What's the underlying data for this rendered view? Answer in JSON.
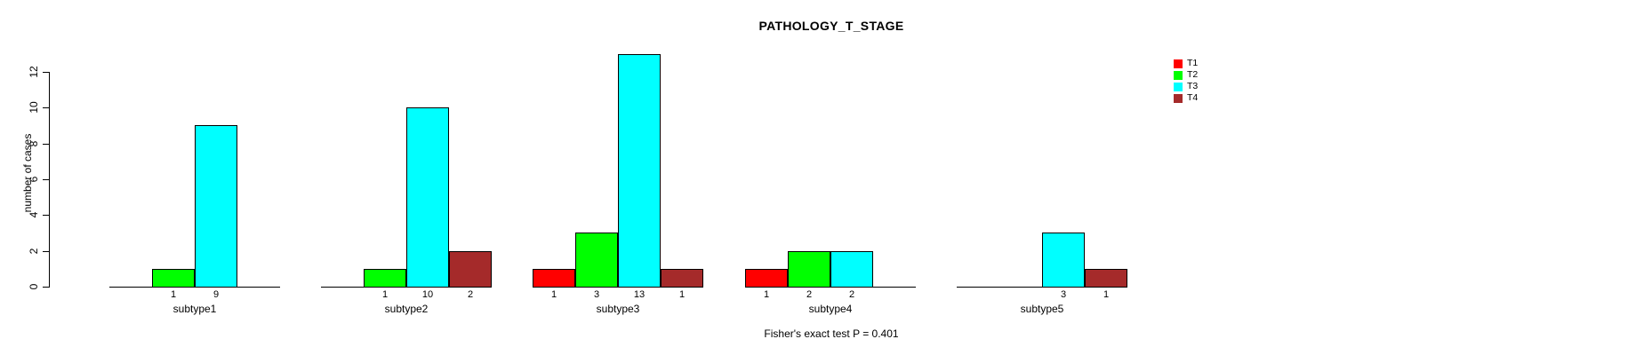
{
  "title": "PATHOLOGY_T_STAGE",
  "chart_data": {
    "type": "bar",
    "title": "PATHOLOGY_T_STAGE",
    "xlabel": "",
    "ylabel": "number of cases",
    "ylim": [
      0,
      13
    ],
    "yticks": [
      0,
      2,
      4,
      6,
      8,
      10,
      12
    ],
    "grid": false,
    "legend_position": "right",
    "categories": [
      "subtype1",
      "subtype2",
      "subtype3",
      "subtype4",
      "subtype5"
    ],
    "series": [
      {
        "name": "T1",
        "color": "#ff0000",
        "values": [
          0,
          0,
          1,
          1,
          0
        ]
      },
      {
        "name": "T2",
        "color": "#00ff00",
        "values": [
          1,
          1,
          3,
          2,
          0
        ]
      },
      {
        "name": "T3",
        "color": "#00ffff",
        "values": [
          9,
          10,
          13,
          2,
          3
        ]
      },
      {
        "name": "T4",
        "color": "#a52a2a",
        "values": [
          0,
          2,
          1,
          0,
          1
        ]
      }
    ],
    "footer": "Fisher's exact test P = 0.401",
    "axis_color": "#000000"
  }
}
